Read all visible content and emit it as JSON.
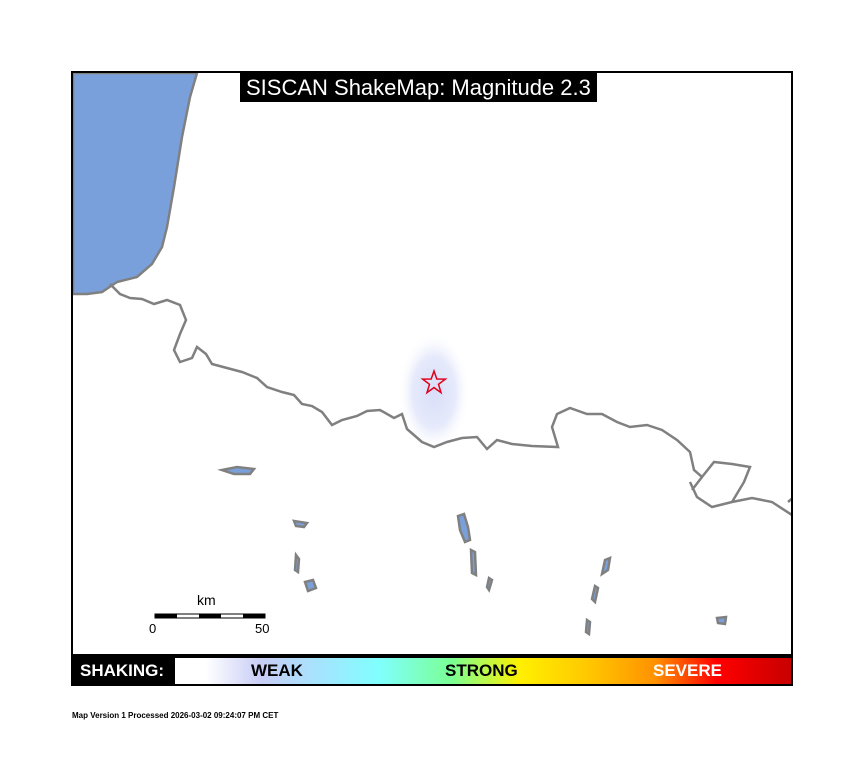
{
  "title": "SISCAN ShakeMap: Magnitude 2.3",
  "colors": {
    "water": "#7aa0dc",
    "border": "#808080",
    "epicenter": "#e0001a",
    "shaking_halo": "#dfe4fa"
  },
  "map": {
    "epicenter_icon": "star-icon"
  },
  "scale_bar": {
    "unit": "km",
    "min_label": "0",
    "max_label": "50"
  },
  "legend": {
    "label": "SHAKING:",
    "weak": "WEAK",
    "strong": "STRONG",
    "severe": "SEVERE"
  },
  "footer": "Map Version 1 Processed 2026-03-02 09:24:07 PM CET"
}
